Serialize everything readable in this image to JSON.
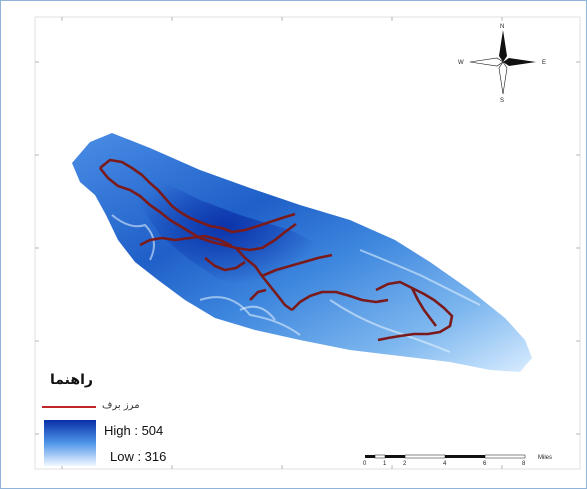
{
  "legend": {
    "title": "راهنما",
    "line_label": "مرز برف",
    "high_label": "High : 504",
    "low_label": "Low : 316",
    "line_color": "#c0252a",
    "gradient_high_color": "#0a2fa8",
    "gradient_low_color": "#ffffff"
  },
  "north_arrow": {
    "n": "N",
    "s": "S",
    "e": "E",
    "w": "W"
  },
  "scale_bar": {
    "ticks": [
      "0",
      "1",
      "2",
      "4",
      "6",
      "8"
    ],
    "unit": "Miles"
  },
  "colors": {
    "dem_high": "#0a2fa8",
    "dem_mid": "#3a7fdc",
    "dem_low": "#e8f4ff",
    "boundary": "#7a1a1a",
    "frame": "#8fb3d9"
  }
}
